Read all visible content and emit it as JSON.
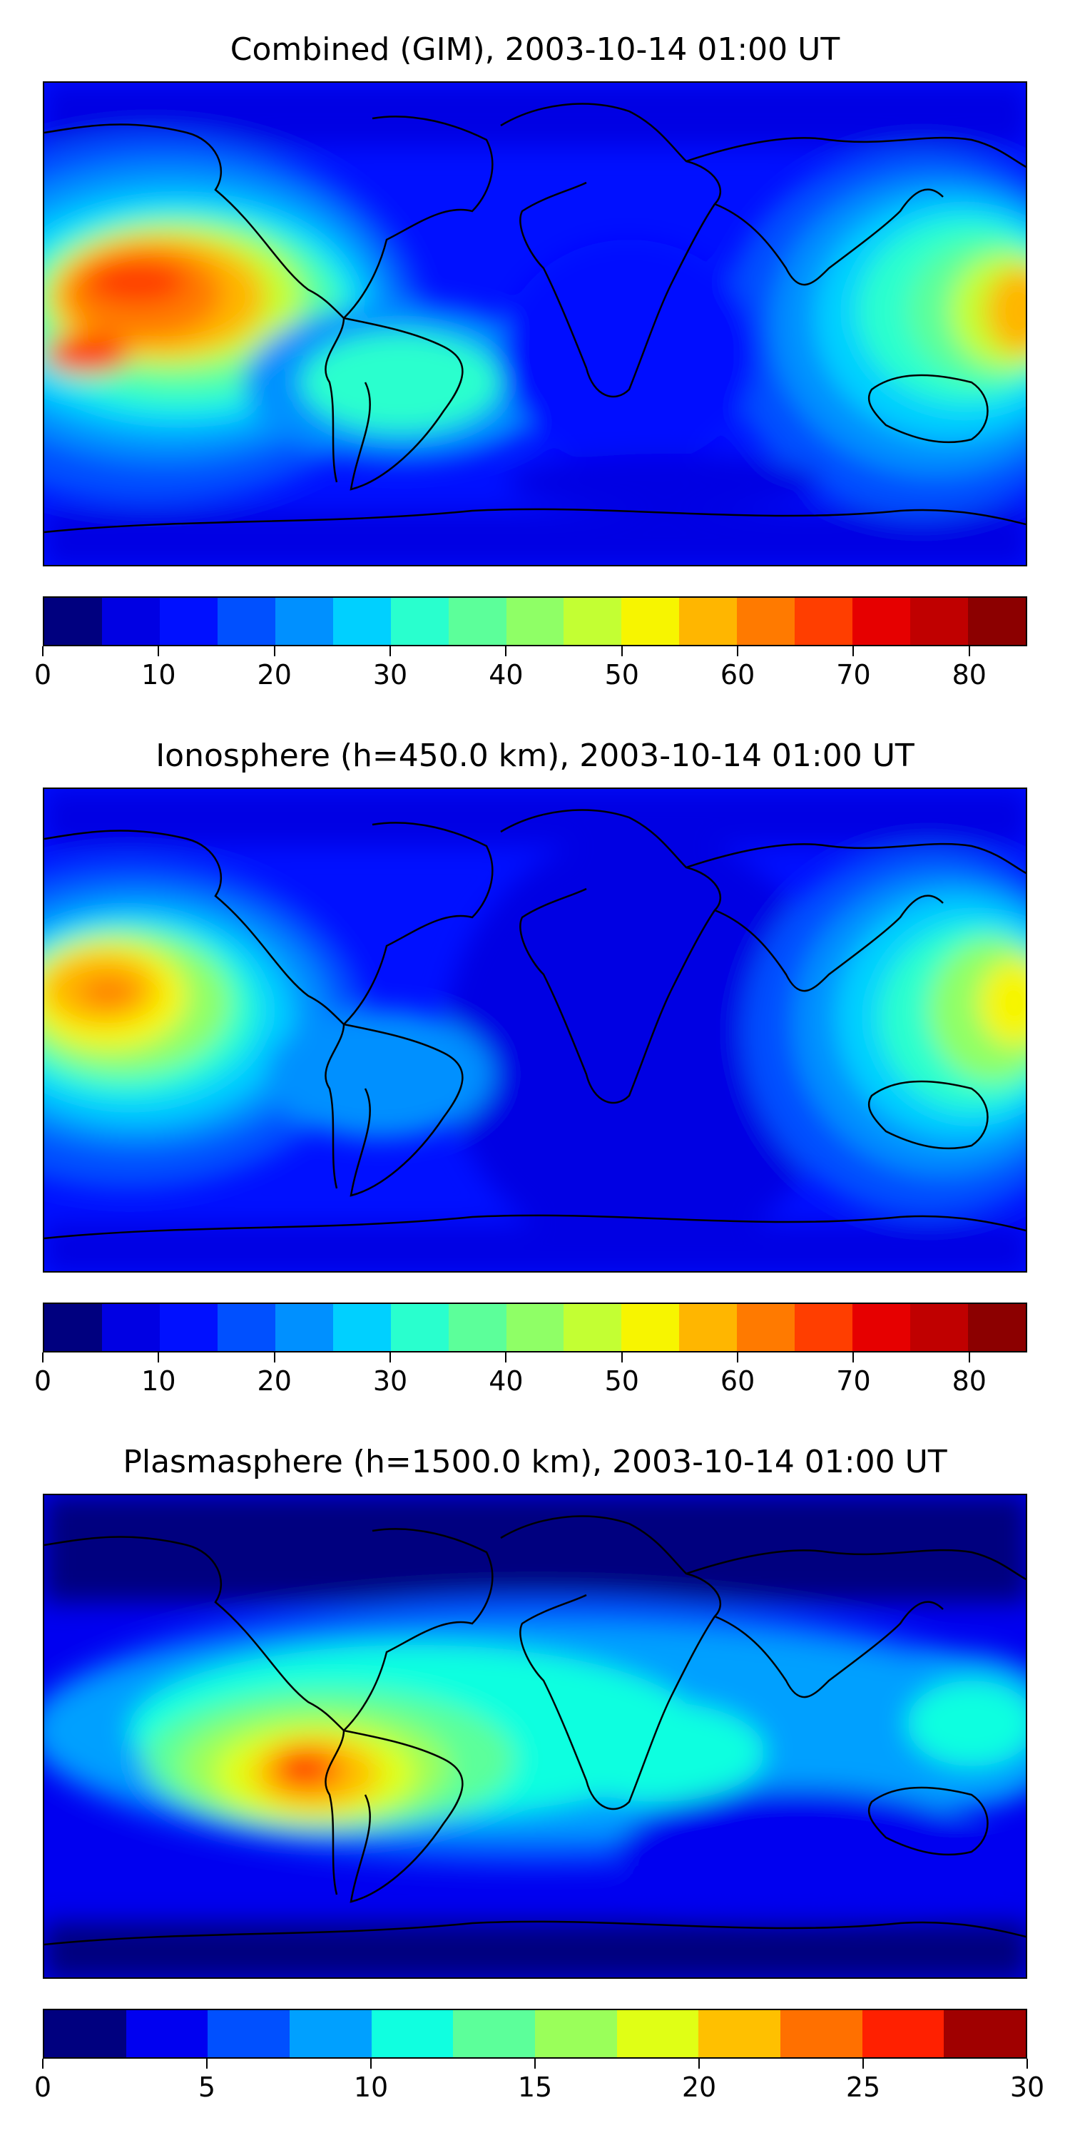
{
  "panels": [
    {
      "title": "Combined (GIM), 2003-10-14 01:00 UT",
      "colorbar": {
        "min": 0,
        "max": 85,
        "step": 5,
        "ticks": [
          "0",
          "10",
          "20",
          "30",
          "40",
          "50",
          "60",
          "70",
          "80"
        ],
        "tick_values": [
          0,
          10,
          20,
          30,
          40,
          50,
          60,
          70,
          80
        ]
      }
    },
    {
      "title": "Ionosphere  (h=450.0 km), 2003-10-14 01:00 UT",
      "colorbar": {
        "min": 0,
        "max": 85,
        "step": 5,
        "ticks": [
          "0",
          "10",
          "20",
          "30",
          "40",
          "50",
          "60",
          "70",
          "80"
        ],
        "tick_values": [
          0,
          10,
          20,
          30,
          40,
          50,
          60,
          70,
          80
        ]
      }
    },
    {
      "title": "Plasmasphere (h=1500.0 km), 2003-10-14 01:00 UT",
      "colorbar": {
        "min": 0,
        "max": 30,
        "step": 2.5,
        "ticks": [
          "0",
          "5",
          "10",
          "15",
          "20",
          "25",
          "30"
        ],
        "tick_values": [
          0,
          5,
          10,
          15,
          20,
          25,
          30
        ]
      }
    }
  ],
  "colors": {
    "jet17": [
      "#00007f",
      "#0000e3",
      "#0010ff",
      "#0050ff",
      "#0090ff",
      "#00d0ff",
      "#29ffce",
      "#5cff9a",
      "#8fff66",
      "#c3ff33",
      "#f7f500",
      "#ffb600",
      "#ff7a00",
      "#ff3e00",
      "#e60000",
      "#c00000",
      "#8c0000"
    ],
    "jet12": [
      "#00007f",
      "#0000f0",
      "#0050ff",
      "#00a0ff",
      "#10ffe0",
      "#5cff9a",
      "#9aff5a",
      "#e0ff15",
      "#ffc000",
      "#ff7000",
      "#ff2000",
      "#a00000"
    ]
  }
}
